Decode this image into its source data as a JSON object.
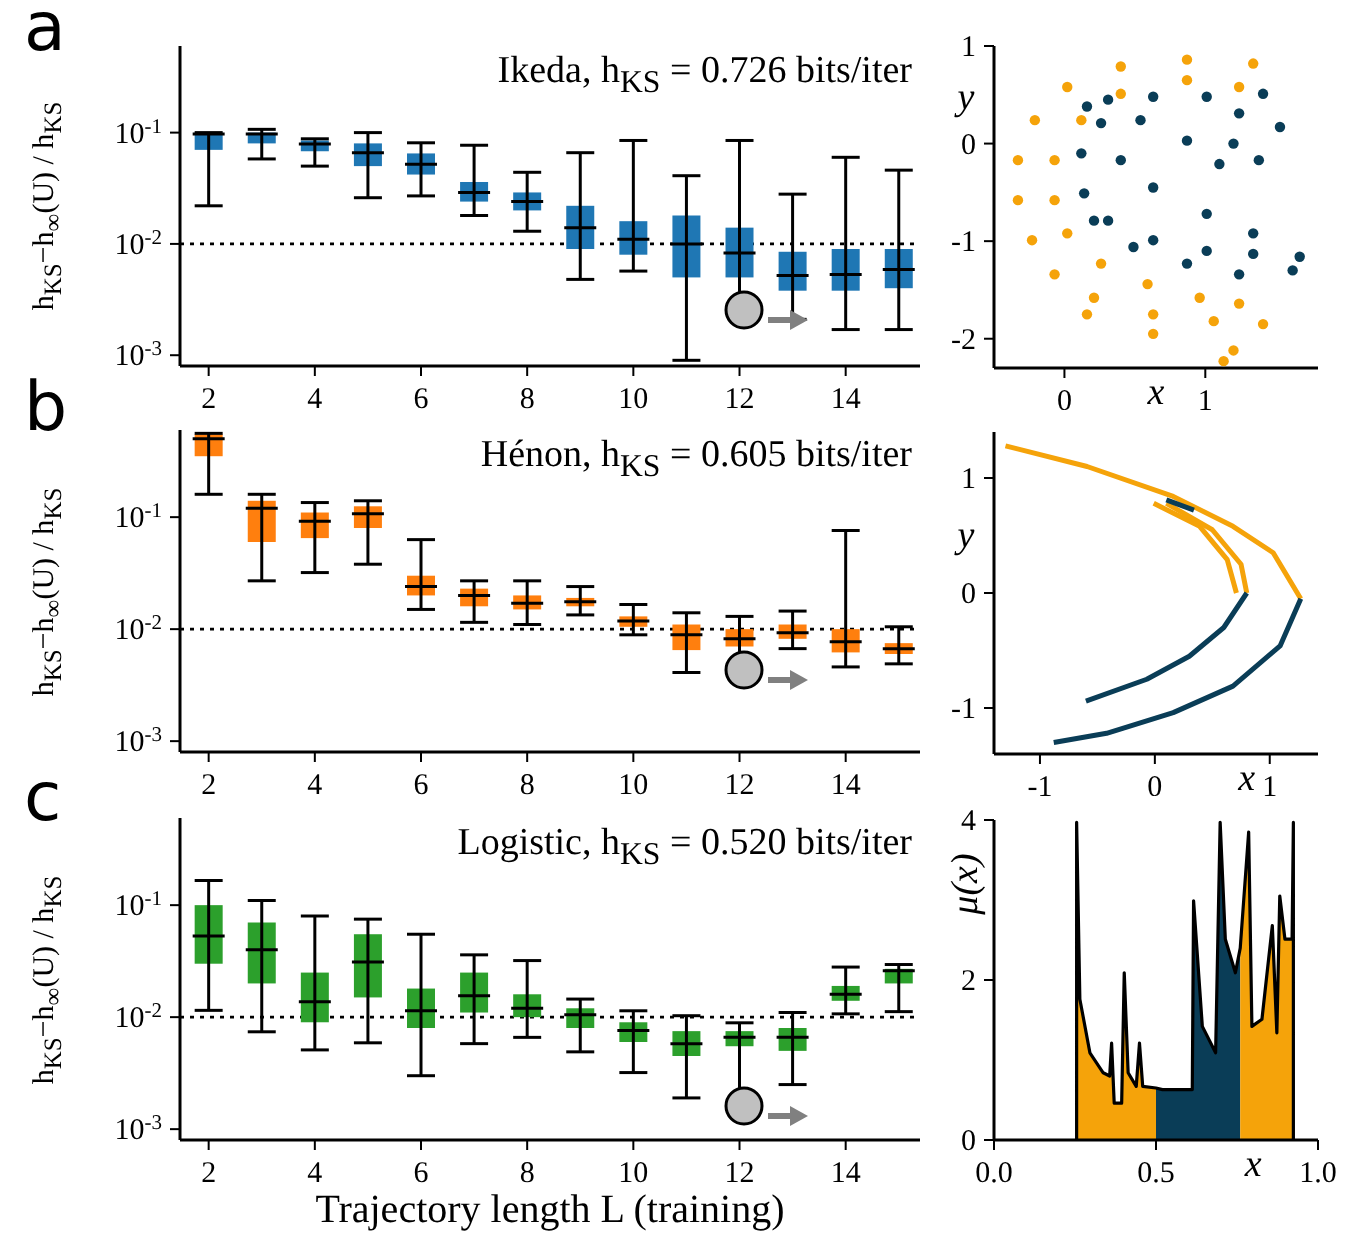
{
  "chart_data": [
    {
      "type": "box",
      "title": "Ikeda, h$_{KS}$ = 0.726 bits/iter",
      "annotations": [
        "a"
      ],
      "ylabel": "h$_{KS}$−h$_{∞}$(U) / h$_{KS}$",
      "color": "#1f77b4",
      "log": true,
      "categories": [
        "2",
        null,
        "4",
        null,
        "6",
        null,
        "8",
        null,
        "10",
        null,
        "12",
        null,
        "14",
        null
      ],
      "ylim": [
        0.0008,
        0.6
      ],
      "yticks": [
        {
          "value": 0.001,
          "label": "10$^{-3}$"
        },
        {
          "value": 0.01,
          "label": "10$^{-2}$"
        },
        {
          "value": 0.1,
          "label": "10$^{-1}$"
        }
      ],
      "ref_lines": [
        {
          "axis": "y",
          "value": 0.01,
          "line_style": "dotted"
        }
      ],
      "boxes": [
        {
          "low": 0.022,
          "q1": 0.07,
          "median": 0.097,
          "q3": 0.1,
          "high": 0.1
        },
        {
          "low": 0.058,
          "q1": 0.08,
          "median": 0.097,
          "q3": 0.1,
          "high": 0.107
        },
        {
          "low": 0.05,
          "q1": 0.068,
          "median": 0.079,
          "q3": 0.085,
          "high": 0.088
        },
        {
          "low": 0.026,
          "q1": 0.05,
          "median": 0.066,
          "q3": 0.08,
          "high": 0.1
        },
        {
          "low": 0.027,
          "q1": 0.042,
          "median": 0.052,
          "q3": 0.065,
          "high": 0.081
        },
        {
          "low": 0.018,
          "q1": 0.024,
          "median": 0.029,
          "q3": 0.036,
          "high": 0.077
        },
        {
          "low": 0.013,
          "q1": 0.02,
          "median": 0.024,
          "q3": 0.029,
          "high": 0.044
        },
        {
          "low": 0.0048,
          "q1": 0.009,
          "median": 0.014,
          "q3": 0.022,
          "high": 0.066
        },
        {
          "low": 0.0057,
          "q1": 0.008,
          "median": 0.011,
          "q3": 0.016,
          "high": 0.085
        },
        {
          "low": 0.0009,
          "q1": 0.005,
          "median": 0.01,
          "q3": 0.018,
          "high": 0.041
        },
        {
          "low": 0.0025,
          "q1": 0.005,
          "median": 0.0083,
          "q3": 0.014,
          "high": 0.085
        },
        {
          "low": 0.0021,
          "q1": 0.0038,
          "median": 0.0052,
          "q3": 0.0085,
          "high": 0.028
        },
        {
          "low": 0.0017,
          "q1": 0.0038,
          "median": 0.0053,
          "q3": 0.009,
          "high": 0.06
        },
        {
          "low": 0.0017,
          "q1": 0.004,
          "median": 0.0059,
          "q3": 0.009,
          "high": 0.046
        }
      ]
    },
    {
      "type": "scatter",
      "xlabel": "x",
      "ylabel": "y",
      "xlim": [
        -0.5,
        1.8
      ],
      "xticks": [
        0,
        1
      ],
      "ylim": [
        -2.3,
        1.0
      ],
      "yticks": [
        -2,
        -1,
        0,
        1
      ],
      "series": [
        {
          "color": "#f5a30a",
          "x": [
            1.34,
            0.87,
            0.4,
            0.02,
            -0.21,
            -0.33,
            -0.33,
            -0.23,
            -0.07,
            0.21,
            0.63,
            1.06,
            1.41,
            1.24,
            0.87,
            0.4,
            0.12,
            -0.07,
            -0.07,
            0.02,
            0.26,
            0.59,
            0.96,
            1.24,
            1.2,
            1.13,
            0.63,
            0.16
          ],
          "values": [
            0.82,
            0.86,
            0.79,
            0.58,
            0.24,
            -0.17,
            -0.58,
            -0.99,
            -1.34,
            -1.58,
            -1.75,
            -1.82,
            -1.85,
            0.58,
            0.65,
            0.51,
            0.24,
            -0.17,
            -0.58,
            -0.92,
            -1.23,
            -1.44,
            -1.58,
            -1.64,
            -2.12,
            -2.23,
            -1.95,
            -1.75
          ]
        },
        {
          "color": "#0a3d57",
          "x": [
            1.41,
            1.53,
            1.38,
            1.1,
            0.87,
            0.54,
            0.26,
            0.12,
            0.14,
            0.31,
            0.63,
            1.01,
            1.34,
            1.67,
            1.62,
            1.24,
            0.87,
            0.49,
            0.21,
            0.31,
            0.63,
            1.01,
            1.24,
            1.2,
            0.4,
            0.63,
            1.01,
            1.34,
            0.16
          ],
          "values": [
            0.51,
            0.17,
            -0.17,
            -0.21,
            0.03,
            0.24,
            0.21,
            -0.1,
            -0.51,
            -0.79,
            -0.99,
            -1.1,
            -1.13,
            -1.16,
            -1.3,
            -1.34,
            -1.23,
            -1.06,
            -0.79,
            0.45,
            0.48,
            0.48,
            0.31,
            0.0,
            -0.17,
            -0.45,
            -0.72,
            -0.92,
            0.38
          ]
        }
      ]
    },
    {
      "type": "box",
      "title": "Hénon, h$_{KS}$ = 0.605 bits/iter",
      "annotations": [
        "b"
      ],
      "ylabel": "h$_{KS}$−h$_{∞}$(U) / h$_{KS}$",
      "color": "#ff7f0e",
      "log": true,
      "categories": [
        "2",
        null,
        "4",
        null,
        "6",
        null,
        "8",
        null,
        "10",
        null,
        "12",
        null,
        "14",
        null
      ],
      "ylim": [
        0.0008,
        0.6
      ],
      "yticks": [
        {
          "value": 0.001,
          "label": "10$^{-3}$"
        },
        {
          "value": 0.01,
          "label": "10$^{-2}$"
        },
        {
          "value": 0.1,
          "label": "10$^{-1}$"
        }
      ],
      "ref_lines": [
        {
          "axis": "y",
          "value": 0.01,
          "line_style": "dotted"
        }
      ],
      "boxes": [
        {
          "low": 0.16,
          "q1": 0.35,
          "median": 0.5,
          "q3": 0.55,
          "high": 0.56
        },
        {
          "low": 0.027,
          "q1": 0.06,
          "median": 0.12,
          "q3": 0.14,
          "high": 0.16
        },
        {
          "low": 0.032,
          "q1": 0.065,
          "median": 0.092,
          "q3": 0.11,
          "high": 0.135
        },
        {
          "low": 0.038,
          "q1": 0.08,
          "median": 0.107,
          "q3": 0.125,
          "high": 0.14
        },
        {
          "low": 0.015,
          "q1": 0.02,
          "median": 0.024,
          "q3": 0.03,
          "high": 0.063
        },
        {
          "low": 0.0115,
          "q1": 0.016,
          "median": 0.02,
          "q3": 0.023,
          "high": 0.027
        },
        {
          "low": 0.011,
          "q1": 0.015,
          "median": 0.017,
          "q3": 0.02,
          "high": 0.027
        },
        {
          "low": 0.0134,
          "q1": 0.016,
          "median": 0.0176,
          "q3": 0.019,
          "high": 0.024
        },
        {
          "low": 0.0089,
          "q1": 0.0105,
          "median": 0.0118,
          "q3": 0.013,
          "high": 0.0166
        },
        {
          "low": 0.0041,
          "q1": 0.0065,
          "median": 0.0089,
          "q3": 0.011,
          "high": 0.014
        },
        {
          "low": 0.0046,
          "q1": 0.007,
          "median": 0.0082,
          "q3": 0.01,
          "high": 0.013
        },
        {
          "low": 0.0067,
          "q1": 0.0082,
          "median": 0.0093,
          "q3": 0.011,
          "high": 0.0145
        },
        {
          "low": 0.0046,
          "q1": 0.0062,
          "median": 0.0077,
          "q3": 0.01,
          "high": 0.076
        },
        {
          "low": 0.0049,
          "q1": 0.006,
          "median": 0.0067,
          "q3": 0.0075,
          "high": 0.0105
        }
      ]
    },
    {
      "type": "line",
      "xlabel": "x",
      "ylabel": "y",
      "xlim": [
        -1.4,
        1.42
      ],
      "xticks": [
        -1,
        0,
        1
      ],
      "ylim": [
        -1.4,
        1.4
      ],
      "yticks": [
        -1,
        0,
        1
      ],
      "series": [
        {
          "color": "#f5a30a",
          "x": [
            -1.3,
            -0.59,
            0.16,
            0.68,
            1.03,
            1.27
          ],
          "values": [
            1.28,
            1.1,
            0.84,
            0.58,
            0.35,
            -0.05
          ]
        },
        {
          "color": "#f5a30a",
          "x": [
            -0.01,
            0.39,
            0.63,
            0.71
          ],
          "values": [
            0.78,
            0.58,
            0.29,
            0.0
          ]
        },
        {
          "color": "#f5a30a",
          "x": [
            0.1,
            0.5,
            0.75,
            0.8
          ],
          "values": [
            0.78,
            0.55,
            0.25,
            0.0
          ]
        },
        {
          "color": "#0a3d57",
          "x": [
            1.27,
            1.09,
            0.68,
            0.16,
            -0.42,
            -0.88
          ],
          "values": [
            -0.05,
            -0.46,
            -0.81,
            -1.04,
            -1.22,
            -1.3
          ]
        },
        {
          "color": "#0a3d57",
          "x": [
            0.8,
            0.6,
            0.3,
            -0.07,
            -0.6
          ],
          "values": [
            0.0,
            -0.3,
            -0.55,
            -0.75,
            -0.94
          ]
        },
        {
          "color": "#0a3d57",
          "x": [
            0.1,
            0.34
          ],
          "values": [
            0.81,
            0.72
          ]
        }
      ]
    },
    {
      "type": "box",
      "title": "Logistic, h$_{KS}$ = 0.520 bits/iter",
      "annotations": [
        "c"
      ],
      "xlabel": "Trajectory length L (training)",
      "ylabel": "h$_{KS}$−h$_{∞}$(U) / h$_{KS}$",
      "color": "#2ca02c",
      "log": true,
      "categories": [
        "2",
        null,
        "4",
        null,
        "6",
        null,
        "8",
        null,
        "10",
        null,
        "12",
        null,
        "14",
        null
      ],
      "ylim": [
        0.0008,
        0.6
      ],
      "yticks": [
        {
          "value": 0.001,
          "label": "10$^{-3}$"
        },
        {
          "value": 0.01,
          "label": "10$^{-2}$"
        },
        {
          "value": 0.1,
          "label": "10$^{-1}$"
        }
      ],
      "ref_lines": [
        {
          "axis": "y",
          "value": 0.01,
          "line_style": "dotted"
        }
      ],
      "boxes": [
        {
          "low": 0.0115,
          "q1": 0.03,
          "median": 0.053,
          "q3": 0.1,
          "high": 0.166
        },
        {
          "low": 0.0074,
          "q1": 0.02,
          "median": 0.04,
          "q3": 0.07,
          "high": 0.11
        },
        {
          "low": 0.0051,
          "q1": 0.009,
          "median": 0.0137,
          "q3": 0.025,
          "high": 0.08
        },
        {
          "low": 0.0059,
          "q1": 0.015,
          "median": 0.031,
          "q3": 0.055,
          "high": 0.075
        },
        {
          "low": 0.003,
          "q1": 0.008,
          "median": 0.0114,
          "q3": 0.018,
          "high": 0.055
        },
        {
          "low": 0.0058,
          "q1": 0.011,
          "median": 0.0155,
          "q3": 0.025,
          "high": 0.036
        },
        {
          "low": 0.0066,
          "q1": 0.01,
          "median": 0.012,
          "q3": 0.016,
          "high": 0.032
        },
        {
          "low": 0.0049,
          "q1": 0.008,
          "median": 0.0105,
          "q3": 0.012,
          "high": 0.0145
        },
        {
          "low": 0.0032,
          "q1": 0.006,
          "median": 0.0076,
          "q3": 0.009,
          "high": 0.0114
        },
        {
          "low": 0.0019,
          "q1": 0.0045,
          "median": 0.0058,
          "q3": 0.0075,
          "high": 0.0103
        },
        {
          "low": 0.0015,
          "q1": 0.0055,
          "median": 0.0066,
          "q3": 0.0075,
          "high": 0.0089
        },
        {
          "low": 0.0025,
          "q1": 0.005,
          "median": 0.0066,
          "q3": 0.008,
          "high": 0.011
        },
        {
          "low": 0.0107,
          "q1": 0.014,
          "median": 0.016,
          "q3": 0.019,
          "high": 0.028
        },
        {
          "low": 0.0112,
          "q1": 0.02,
          "median": 0.026,
          "q3": 0.027,
          "high": 0.0295
        }
      ]
    },
    {
      "type": "area",
      "xlabel": "x",
      "ylabel": "μ(x)",
      "xlim": [
        0,
        1
      ],
      "xticks": [
        {
          "value": 0,
          "label": "0.0"
        },
        {
          "value": 0.5,
          "label": "0.5"
        },
        {
          "value": 1,
          "label": "1.0"
        }
      ],
      "ylim": [
        0,
        4
      ],
      "yticks": [
        0,
        2,
        4
      ],
      "series": [
        {
          "color": "#f5a30a",
          "x": [
            0.255,
            0.265,
            0.296,
            0.337,
            0.357,
            0.363,
            0.371,
            0.394,
            0.402,
            0.414,
            0.439,
            0.449,
            0.459,
            0.5
          ],
          "values": [
            3.97,
            1.76,
            1.09,
            0.84,
            0.8,
            1.21,
            0.46,
            0.46,
            2.09,
            0.84,
            0.67,
            1.21,
            0.67,
            0.65
          ]
        },
        {
          "color": "#0a3d57",
          "x": [
            0.5,
            0.52,
            0.612,
            0.616,
            0.643,
            0.684,
            0.698,
            0.714,
            0.745,
            0.76
          ],
          "values": [
            0.65,
            0.63,
            0.63,
            2.99,
            1.42,
            1.09,
            3.97,
            2.51,
            2.09,
            2.4
          ]
        },
        {
          "color": "#f5a30a",
          "x": [
            0.76,
            0.786,
            0.796,
            0.827,
            0.859,
            0.873,
            0.882,
            0.898,
            0.92,
            0.924
          ],
          "values": [
            2.4,
            3.85,
            1.42,
            1.51,
            2.68,
            1.34,
            3.05,
            2.51,
            2.51,
            3.97
          ]
        },
        {
          "type": "line",
          "color": "#000000",
          "x": [
            0.255,
            0.255,
            0.265,
            0.296,
            0.337,
            0.357,
            0.363,
            0.371,
            0.394,
            0.402,
            0.414,
            0.439,
            0.449,
            0.459,
            0.5,
            0.52,
            0.612,
            0.616,
            0.643,
            0.684,
            0.698,
            0.714,
            0.745,
            0.76,
            0.786,
            0.796,
            0.827,
            0.859,
            0.873,
            0.882,
            0.898,
            0.92,
            0.924,
            0.924
          ],
          "values": [
            0,
            3.97,
            1.76,
            1.09,
            0.84,
            0.8,
            1.21,
            0.46,
            0.46,
            2.09,
            0.84,
            0.67,
            1.21,
            0.67,
            0.65,
            0.63,
            0.63,
            2.99,
            1.42,
            1.09,
            3.97,
            2.51,
            2.09,
            2.4,
            3.85,
            1.42,
            1.51,
            2.68,
            1.34,
            3.05,
            2.51,
            2.51,
            3.97,
            0
          ]
        }
      ]
    }
  ]
}
